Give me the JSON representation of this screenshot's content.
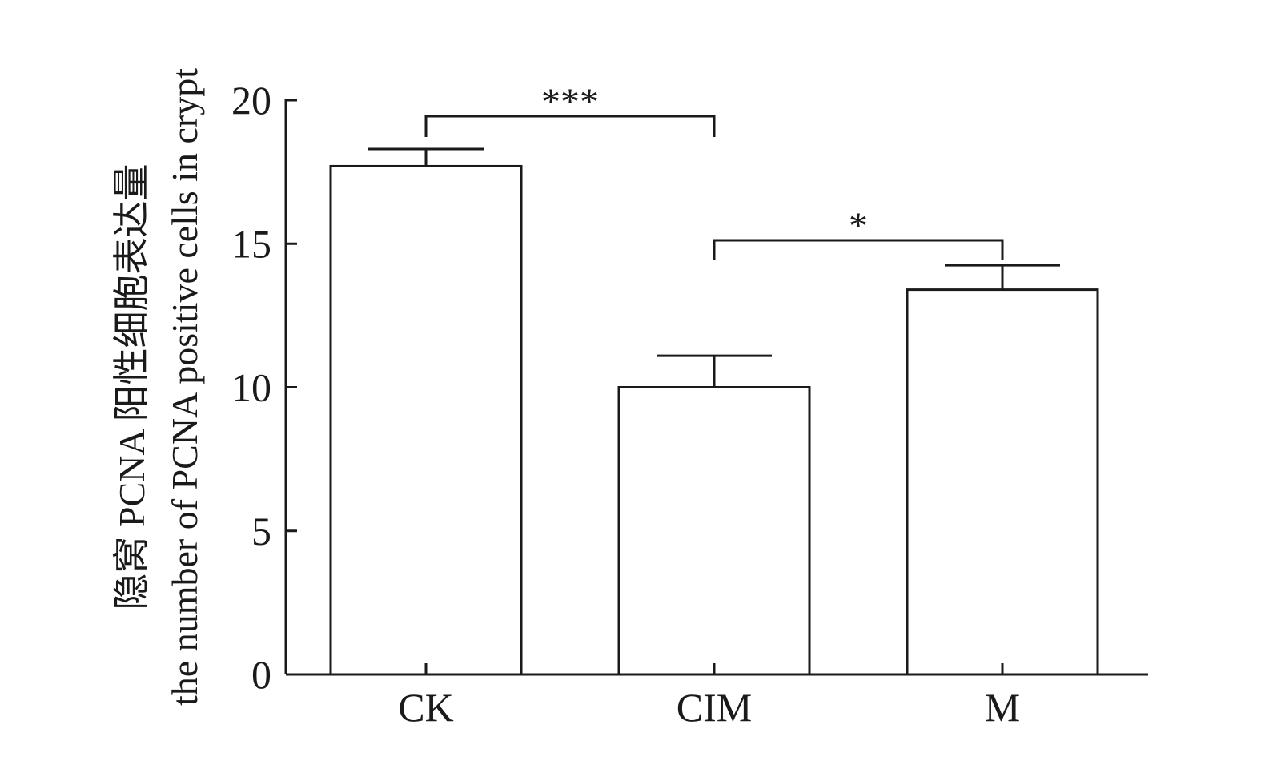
{
  "chart_data": {
    "type": "bar",
    "categories": [
      "CK",
      "CIM",
      "M"
    ],
    "values": [
      17.7,
      10.0,
      13.4
    ],
    "errors": [
      0.6,
      1.1,
      0.85
    ],
    "ylim": [
      0,
      20
    ],
    "yticks": [
      0,
      5,
      10,
      15,
      20
    ],
    "ylabel_line1": "隐窝 PCNA 阳性细胞表达量",
    "ylabel_line2": "the number of PCNA positive cells in crypt",
    "xlabel": "",
    "grid": false,
    "legend": "none",
    "significance": [
      {
        "from": "CK",
        "to": "CIM",
        "label": "***"
      },
      {
        "from": "CIM",
        "to": "M",
        "label": "*"
      }
    ],
    "colors": {
      "bar_fill": "#ffffff",
      "stroke": "#1a1a1a"
    }
  }
}
